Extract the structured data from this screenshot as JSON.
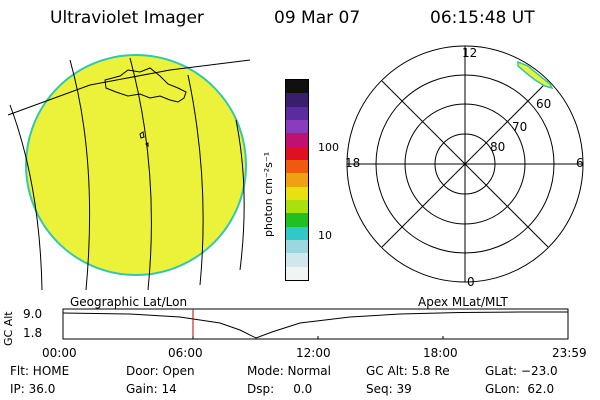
{
  "header": {
    "instrument": "Ultraviolet Imager",
    "date": "09 Mar 07",
    "time": "06:15:48 UT"
  },
  "colorbar": {
    "unit_label": "photon cm⁻²s⁻¹",
    "ticks": [
      "100",
      "10"
    ],
    "colors": [
      "#101010",
      "#3a1e6e",
      "#5a2c9e",
      "#8a3cbe",
      "#c01070",
      "#e01020",
      "#f05a10",
      "#f0a010",
      "#e8e010",
      "#a8e010",
      "#20c020",
      "#30c8c8",
      "#9ad8e0",
      "#d0e8ec",
      "#f0f4f4"
    ]
  },
  "polar": {
    "mlt_labels": {
      "top": "12",
      "left": "18",
      "right": "6",
      "bottom": "0"
    },
    "lat_labels": [
      "60",
      "70",
      "80"
    ]
  },
  "altitude_strip": {
    "left_label": "Geographic Lat/Lon",
    "right_label": "Apex MLat/MLT",
    "y_axis_label": "GC Alt",
    "y_ticks": [
      "9.0",
      "1.8"
    ],
    "x_ticks": [
      "00:00",
      "06:00",
      "12:00",
      "18:00",
      "23:59"
    ]
  },
  "status": {
    "flt": "Flt: HOME",
    "ip": "IP: 36.0",
    "door": "Door: Open",
    "gain": "Gain: 14",
    "mode": "Mode: Normal",
    "dsp": "Dsp:     0.0",
    "gc_alt": "GC Alt: 5.8 Re",
    "seq": "Seq: 39",
    "glat": "GLat: −23.0",
    "glon": "GLon:  62.0"
  },
  "colors": {
    "earth_fill": "#ecf23a",
    "earth_edge": "#30c8b0",
    "cursor_line": "#c00000"
  }
}
